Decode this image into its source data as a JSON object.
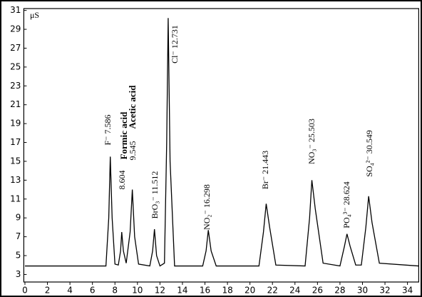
{
  "chart_data": {
    "type": "line",
    "y_label": "μS",
    "xlim": [
      -0.1,
      35
    ],
    "ylim": [
      2.2,
      31.2
    ],
    "xticks": [
      0,
      2,
      4,
      6,
      8,
      10,
      12,
      14,
      16,
      18,
      20,
      22,
      24,
      26,
      28,
      30,
      32,
      34
    ],
    "yticks": [
      3,
      5,
      7,
      9,
      11,
      13,
      15,
      17,
      19,
      21,
      23,
      25,
      27,
      29,
      31
    ],
    "grid": false,
    "series": [
      {
        "color": "#000000",
        "x": [
          0,
          7.2,
          7.45,
          7.586,
          7.75,
          8.0,
          8.3,
          8.5,
          8.604,
          8.75,
          9.0,
          9.35,
          9.545,
          9.75,
          10.1,
          11.1,
          11.35,
          11.512,
          11.7,
          12.0,
          12.4,
          12.6,
          12.731,
          12.9,
          13.3,
          15.8,
          16.1,
          16.298,
          16.55,
          17.0,
          20.8,
          21.2,
          21.443,
          21.75,
          22.3,
          24.9,
          25.3,
          25.503,
          25.8,
          26.5,
          28.0,
          28.4,
          28.624,
          28.9,
          29.4,
          29.9,
          30.3,
          30.549,
          30.85,
          31.5,
          35
        ],
        "values": [
          3.9,
          3.9,
          9,
          15.5,
          9,
          4.1,
          4.0,
          5.5,
          7.5,
          5.5,
          4.2,
          7.5,
          12,
          7,
          4.1,
          3.9,
          5.5,
          7.8,
          5.0,
          3.9,
          4.2,
          17,
          30.2,
          15,
          3.9,
          3.9,
          5.5,
          7.7,
          5.5,
          3.9,
          3.9,
          7.5,
          10.5,
          8,
          4.0,
          3.9,
          9,
          13,
          10,
          4.2,
          3.9,
          6,
          7.3,
          6,
          4.0,
          4.0,
          8,
          11.3,
          8.5,
          4.2,
          3.9
        ]
      }
    ],
    "annotations": [
      "F⁻ 7.586",
      "8.604",
      "Formic acid",
      "9.545",
      "Acetic acid",
      "BrO₃⁻ 11.512",
      "Cl⁻ 12.731",
      "NO₂⁻ 16.298",
      "Br⁻ 21.443",
      "NO₃⁻ 25.503",
      "PO₄³⁻ 28.624",
      "SO₄²⁻ 30.549"
    ]
  }
}
